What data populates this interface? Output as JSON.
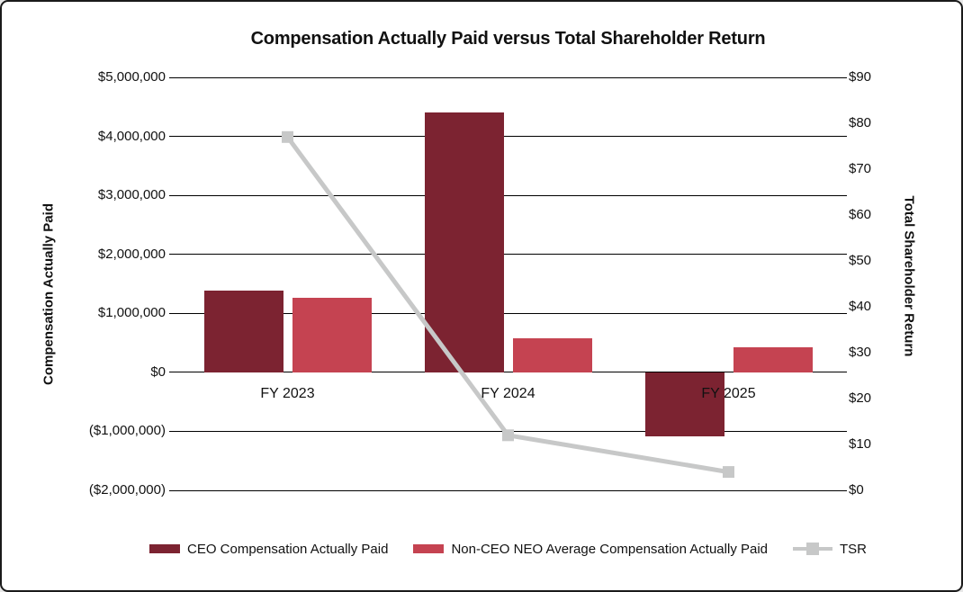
{
  "chart_data": {
    "type": "combo",
    "title": "Compensation Actually Paid versus Total Shareholder Return",
    "left_ylabel": "Compensation Actually Paid",
    "right_ylabel": "Total Shareholder Return",
    "categories": [
      "FY 2023",
      "FY 2024",
      "FY 2025"
    ],
    "series": [
      {
        "name": "CEO Compensation Actually Paid",
        "type": "bar",
        "axis": "left",
        "color": "#7C2331",
        "values": [
          1380000,
          4400000,
          -1090000
        ]
      },
      {
        "name": "Non-CEO NEO Average Compensation Actually Paid",
        "type": "bar",
        "axis": "left",
        "color": "#C54351",
        "values": [
          1270000,
          570000,
          430000
        ]
      },
      {
        "name": "TSR",
        "type": "line",
        "axis": "right",
        "color": "#C7C8C8",
        "values": [
          77,
          12,
          4
        ]
      }
    ],
    "left_ylim": [
      -2000000,
      5000000
    ],
    "right_ylim": [
      0,
      90
    ],
    "left_ticks": [
      {
        "v": 5000000,
        "label": "$5,000,000"
      },
      {
        "v": 4000000,
        "label": "$4,000,000"
      },
      {
        "v": 3000000,
        "label": "$3,000,000"
      },
      {
        "v": 2000000,
        "label": "$2,000,000"
      },
      {
        "v": 1000000,
        "label": "$1,000,000"
      },
      {
        "v": 0,
        "label": "$0"
      },
      {
        "v": -1000000,
        "label": "($1,000,000)"
      },
      {
        "v": -2000000,
        "label": "($2,000,000)"
      }
    ],
    "right_ticks": [
      {
        "v": 90,
        "label": "$90"
      },
      {
        "v": 80,
        "label": "$80"
      },
      {
        "v": 70,
        "label": "$70"
      },
      {
        "v": 60,
        "label": "$60"
      },
      {
        "v": 50,
        "label": "$50"
      },
      {
        "v": 40,
        "label": "$40"
      },
      {
        "v": 30,
        "label": "$30"
      },
      {
        "v": 20,
        "label": "$20"
      },
      {
        "v": 10,
        "label": "$10"
      },
      {
        "v": 0,
        "label": "$0"
      }
    ],
    "grid": true,
    "legend_position": "bottom"
  },
  "colors": {
    "ceo_bar": "#7C2331",
    "neo_bar": "#C54351",
    "tsr_line": "#C7C8C8",
    "gridline": "#000000",
    "text": "#111111",
    "frame_border": "#1A1A1A",
    "background": "#FFFFFF"
  }
}
